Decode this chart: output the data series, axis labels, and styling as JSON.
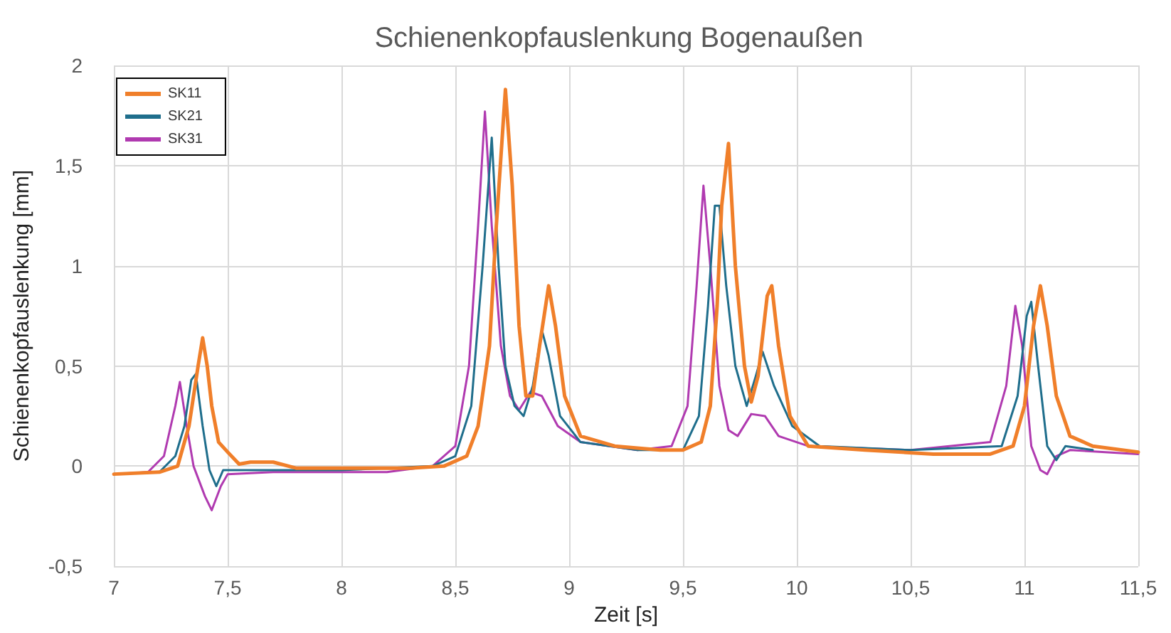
{
  "chart_data": {
    "type": "line",
    "title": "Schienenkopfauslenkung Bogenaußen",
    "xlabel": "Zeit [s]",
    "ylabel": "Schienenkopfauslenkung [mm]",
    "xlim": [
      7,
      11.5
    ],
    "xticks": [
      7,
      {
        "value": 7.5,
        "label": "7,5"
      },
      8,
      {
        "value": 8.5,
        "label": "8,5"
      },
      9,
      {
        "value": 9.5,
        "label": "9,5"
      },
      10,
      {
        "value": 10.5,
        "label": "10,5"
      },
      11,
      {
        "value": 11.5,
        "label": "11,5"
      }
    ],
    "ylim": [
      -0.5,
      2
    ],
    "yticks": [
      {
        "value": -0.5,
        "label": "-0,5"
      },
      0,
      {
        "value": 0.5,
        "label": "0,5"
      },
      1,
      {
        "value": 1.5,
        "label": "1,5"
      },
      2
    ],
    "grid": true,
    "legend": "top left",
    "marker": "none",
    "line_style": "solid",
    "series": [
      {
        "name": "SK11",
        "color": "#f07f2a",
        "x": [
          7.0,
          7.2,
          7.28,
          7.33,
          7.37,
          7.39,
          7.41,
          7.43,
          7.46,
          7.5,
          7.55,
          7.6,
          7.7,
          7.8,
          8.0,
          8.3,
          8.45,
          8.55,
          8.6,
          8.65,
          8.68,
          8.72,
          8.75,
          8.78,
          8.81,
          8.84,
          8.87,
          8.91,
          8.94,
          8.98,
          9.05,
          9.2,
          9.4,
          9.5,
          9.58,
          9.62,
          9.65,
          9.67,
          9.7,
          9.73,
          9.77,
          9.8,
          9.83,
          9.87,
          9.89,
          9.92,
          9.97,
          10.05,
          10.3,
          10.6,
          10.85,
          10.95,
          11.0,
          11.04,
          11.07,
          11.1,
          11.14,
          11.2,
          11.3,
          11.5
        ],
        "values": [
          -0.04,
          -0.03,
          0.0,
          0.2,
          0.5,
          0.64,
          0.5,
          0.3,
          0.12,
          0.07,
          0.01,
          0.02,
          0.02,
          -0.01,
          -0.01,
          -0.01,
          0.0,
          0.05,
          0.2,
          0.6,
          1.2,
          1.88,
          1.4,
          0.7,
          0.35,
          0.35,
          0.6,
          0.9,
          0.7,
          0.35,
          0.15,
          0.1,
          0.08,
          0.08,
          0.12,
          0.3,
          0.8,
          1.3,
          1.61,
          1.0,
          0.5,
          0.32,
          0.45,
          0.85,
          0.9,
          0.6,
          0.25,
          0.1,
          0.08,
          0.06,
          0.06,
          0.1,
          0.3,
          0.7,
          0.9,
          0.7,
          0.35,
          0.15,
          0.1,
          0.07
        ]
      },
      {
        "name": "SK21",
        "color": "#1f6e8c",
        "x": [
          7.2,
          7.27,
          7.31,
          7.34,
          7.36,
          7.39,
          7.42,
          7.45,
          7.48,
          7.6,
          8.0,
          8.4,
          8.5,
          8.57,
          8.62,
          8.66,
          8.69,
          8.72,
          8.76,
          8.8,
          8.84,
          8.88,
          8.91,
          8.96,
          9.05,
          9.3,
          9.5,
          9.57,
          9.61,
          9.64,
          9.66,
          9.69,
          9.73,
          9.78,
          9.82,
          9.85,
          9.9,
          9.98,
          10.1,
          10.5,
          10.9,
          10.97,
          11.01,
          11.03,
          11.06,
          11.1,
          11.14,
          11.18,
          11.3
        ],
        "values": [
          -0.03,
          0.05,
          0.2,
          0.43,
          0.46,
          0.2,
          -0.02,
          -0.1,
          -0.02,
          -0.02,
          -0.02,
          0.0,
          0.05,
          0.3,
          1.0,
          1.64,
          1.0,
          0.5,
          0.3,
          0.25,
          0.4,
          0.68,
          0.55,
          0.25,
          0.12,
          0.08,
          0.08,
          0.25,
          0.8,
          1.3,
          1.3,
          0.9,
          0.5,
          0.3,
          0.45,
          0.57,
          0.4,
          0.2,
          0.1,
          0.08,
          0.1,
          0.35,
          0.75,
          0.82,
          0.5,
          0.1,
          0.03,
          0.1,
          0.08
        ]
      },
      {
        "name": "SK31",
        "color": "#b03ab0",
        "x": [
          7.0,
          7.15,
          7.22,
          7.27,
          7.29,
          7.32,
          7.35,
          7.4,
          7.43,
          7.47,
          7.5,
          7.7,
          8.2,
          8.4,
          8.5,
          8.56,
          8.6,
          8.63,
          8.66,
          8.7,
          8.74,
          8.78,
          8.83,
          8.88,
          8.95,
          9.05,
          9.3,
          9.45,
          9.52,
          9.56,
          9.59,
          9.62,
          9.66,
          9.7,
          9.74,
          9.8,
          9.86,
          9.92,
          10.05,
          10.5,
          10.85,
          10.92,
          10.96,
          10.99,
          11.03,
          11.07,
          11.1,
          11.14,
          11.2,
          11.5
        ],
        "values": [
          -0.04,
          -0.03,
          0.05,
          0.3,
          0.42,
          0.2,
          0.0,
          -0.15,
          -0.22,
          -0.1,
          -0.04,
          -0.03,
          -0.03,
          0.0,
          0.1,
          0.5,
          1.2,
          1.77,
          1.2,
          0.6,
          0.35,
          0.28,
          0.37,
          0.35,
          0.2,
          0.12,
          0.08,
          0.1,
          0.3,
          0.9,
          1.4,
          1.0,
          0.4,
          0.18,
          0.15,
          0.26,
          0.25,
          0.15,
          0.1,
          0.08,
          0.12,
          0.4,
          0.8,
          0.6,
          0.1,
          -0.02,
          -0.04,
          0.05,
          0.08,
          0.06
        ]
      }
    ]
  }
}
